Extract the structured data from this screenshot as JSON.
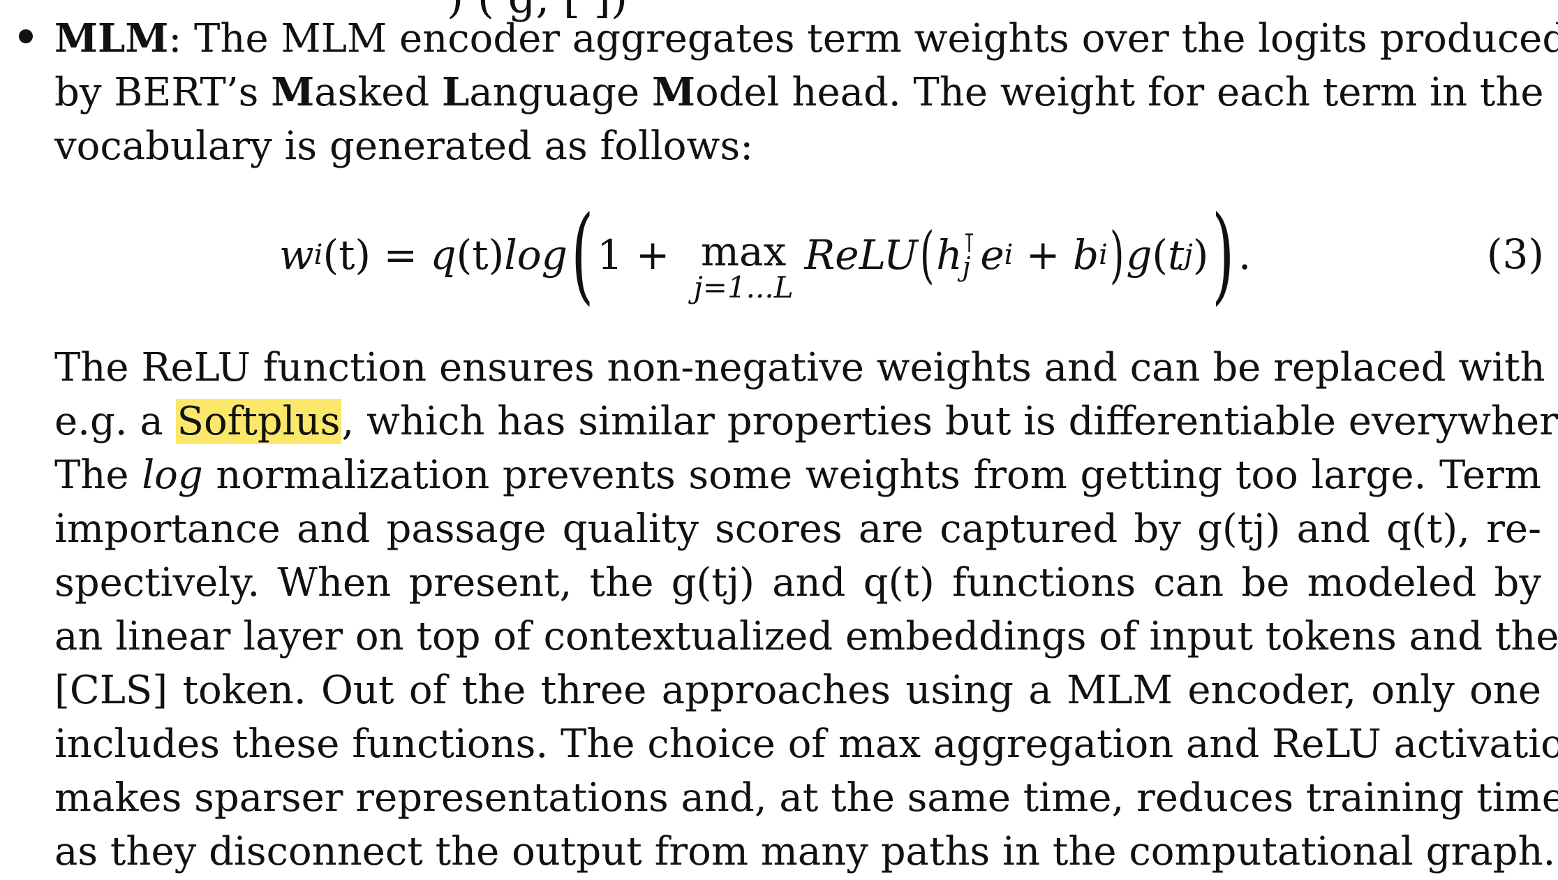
{
  "cutoff_top": ")  ( g,             [ ])",
  "mlm_item": {
    "term": "MLM",
    "line1_rest": ": The MLM encoder aggregates term weights over the logits produced",
    "line2_a": "by BERT’s ",
    "line2_M": "M",
    "line2_b": "asked ",
    "line2_L": "L",
    "line2_c": "anguage ",
    "line2_M2": "M",
    "line2_d": "odel head. The weight for each term in the",
    "line3": "vocabulary is generated as follows:"
  },
  "equation": {
    "lhs": "w",
    "lhs_sub": "i",
    "lhs_arg": "(t)",
    "eq": " = ",
    "q": "q",
    "q_arg": "(t)",
    "log": "log",
    "one_plus": "1 + ",
    "max": "max",
    "max_sub": "j=1...L",
    "relu": "ReLU",
    "h": "h",
    "h_sup": "⊺",
    "h_sub": "j",
    "e": "e",
    "e_sub": "i",
    "plus": " + ",
    "b": "b",
    "b_sub": "i",
    "g": "g",
    "t": "t",
    "t_sub": "j",
    "dot": ".",
    "number": "(3)"
  },
  "paragraph": {
    "l1": "The ReLU function ensures non-negative weights and can be replaced with",
    "l2_a": "e.g. a ",
    "l2_hl": "Softplus",
    "l2_b": ", which has similar properties but is differentiable everywhere.",
    "l3_a": "The ",
    "l3_log": "log",
    "l3_b": " normalization prevents some weights from getting too large. Term",
    "l4": "importance and passage quality scores are captured by g(tj) and q(t), re-",
    "l5": "spectively. When present, the g(tj) and q(t) functions can be modeled by",
    "l6": "an linear layer on top of contextualized embeddings of input tokens and the",
    "l7": "[CLS] token. Out of the three approaches using a MLM encoder, only one",
    "l8": "includes these functions. The choice of max aggregation and ReLU activation",
    "l9": "makes sparser representations and, at the same time, reduces training time",
    "l10": "as they disconnect the output from many paths in the computational graph."
  },
  "colors": {
    "highlight": "#fbe86a",
    "text": "#111111"
  }
}
